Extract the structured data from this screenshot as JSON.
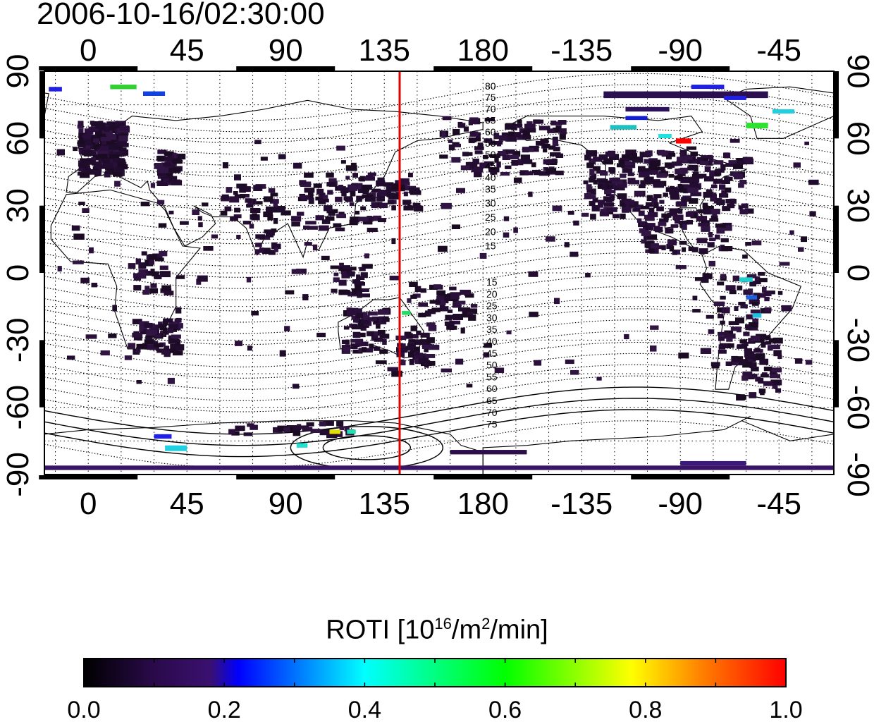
{
  "title": "2006-10-16/02:30:00",
  "colorbar": {
    "label_main": "ROTI  [10",
    "label_sup1": "16",
    "label_mid": "/m",
    "label_sup2": "2",
    "label_end": "/min]",
    "ticks": [
      "0.0",
      "0.2",
      "0.4",
      "0.6",
      "0.8",
      "1.0"
    ],
    "range": [
      0.0,
      1.0
    ],
    "stops": [
      "#000000",
      "#2a0a4a",
      "#3a1070",
      "#0000ff",
      "#00ffff",
      "#00ff00",
      "#ffff00",
      "#ff0000"
    ]
  },
  "map": {
    "lon_ticks": [
      "0",
      "45",
      "90",
      "135",
      "180",
      "-135",
      "-90",
      "-45"
    ],
    "lon_tick_values": [
      0,
      45,
      90,
      135,
      180,
      225,
      270,
      315
    ],
    "lat_ticks_left": [
      "90",
      "60",
      "30",
      "0",
      "-30",
      "-60",
      "-90"
    ],
    "lat_ticks_right": [
      "90",
      "60",
      "30",
      "0",
      "-30",
      "-60",
      "-90"
    ],
    "lat_tick_values": [
      90,
      60,
      30,
      0,
      -30,
      -60,
      -90
    ],
    "lon_range": [
      -20,
      340
    ],
    "lat_range": [
      -90,
      90
    ],
    "terminator_lon": 142,
    "contour_labels_north": [
      "80",
      "75",
      "70",
      "65",
      "60",
      "55",
      "50",
      "45",
      "40",
      "35",
      "30",
      "25",
      "20",
      "15"
    ],
    "contour_labels_south": [
      "15",
      "20",
      "25",
      "30",
      "35",
      "40",
      "45",
      "50",
      "55",
      "60",
      "65",
      "70",
      "75"
    ],
    "contour_label_values_north": [
      80,
      75,
      70,
      65,
      60,
      55,
      50,
      45,
      40,
      35,
      30,
      25,
      20,
      15
    ],
    "contour_label_values_south": [
      15,
      20,
      25,
      30,
      35,
      40,
      45,
      50,
      55,
      60,
      65,
      70,
      75
    ],
    "grid": true
  }
}
